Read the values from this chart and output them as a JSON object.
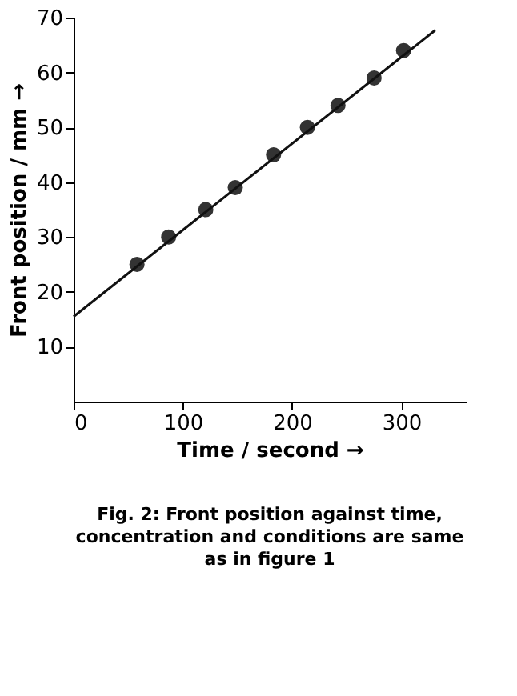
{
  "chart_data": {
    "type": "scatter",
    "xlabel": "Time / second →",
    "ylabel": "Front position / mm →",
    "annotations": [
      "Fig. 2: Front position against time, concentration and conditions are same as in figure 1"
    ],
    "x": [
      58,
      87,
      121,
      148,
      183,
      214,
      242,
      275,
      302
    ],
    "series": [
      {
        "color": "#333333",
        "values": [
          25,
          30,
          35,
          39,
          45,
          50,
          54,
          59,
          64
        ],
        "marker": "circle"
      },
      {
        "type": "line",
        "color": "#111111",
        "x": [
          0,
          331
        ],
        "values": [
          15.5,
          67.7
        ],
        "marker": "none"
      }
    ],
    "xlim": [
      0,
      359
    ],
    "ylim": [
      0,
      70
    ],
    "xticks": [
      0,
      100,
      200,
      300
    ],
    "yticks": [
      10,
      20,
      30,
      40,
      50,
      60,
      70
    ],
    "grid": false
  }
}
